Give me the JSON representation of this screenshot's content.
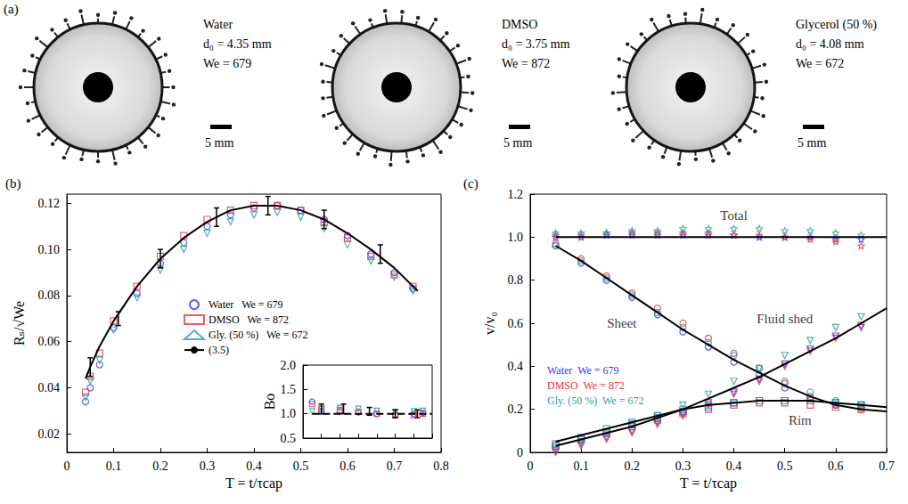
{
  "panel_a": {
    "label": "(a)",
    "photos": [
      {
        "fluid": "Water",
        "d0": "d₀ = 4.35 mm",
        "we": "We = 679",
        "scale": "5 mm"
      },
      {
        "fluid": "DMSO",
        "d0": "d₀ = 3.75 mm",
        "we": "We = 872",
        "scale": "5 mm"
      },
      {
        "fluid": "Glycerol (50 %)",
        "d0": "d₀ = 4.08 mm",
        "we": "We = 672",
        "scale": "5 mm"
      }
    ]
  },
  "chart_data": [
    {
      "type": "scatter",
      "label": "(b)",
      "x_label": "T = t/τcap",
      "y_label": "Rₛ/√We",
      "xlim": [
        0,
        0.8
      ],
      "xticks": [
        0,
        0.1,
        0.2,
        0.3,
        0.4,
        0.5,
        0.6,
        0.7,
        0.8
      ],
      "ylim": [
        0.012,
        0.124
      ],
      "yticks": [
        0.02,
        0.04,
        0.06,
        0.08,
        {
          "value": 0.1,
          "label": "0.10"
        },
        0.12
      ],
      "grid": false,
      "legend": "center",
      "series": [
        {
          "name": "Water",
          "label": "We = 679",
          "color": "#3333ff",
          "marker": "circle",
          "x": [
            0.04,
            0.05,
            0.07,
            0.1,
            0.15,
            0.2,
            0.25,
            0.3,
            0.35,
            0.4,
            0.45,
            0.5,
            0.55,
            0.6,
            0.65,
            0.7,
            0.74
          ],
          "values": [
            0.034,
            0.04,
            0.05,
            0.066,
            0.081,
            0.094,
            0.103,
            0.11,
            0.115,
            0.118,
            0.119,
            0.117,
            0.113,
            0.106,
            0.098,
            0.09,
            0.083
          ]
        },
        {
          "name": "DMSO",
          "label": "We = 872",
          "color": "#e8333a",
          "marker": "square",
          "x": [
            0.04,
            0.05,
            0.07,
            0.1,
            0.15,
            0.2,
            0.25,
            0.3,
            0.35,
            0.4,
            0.45,
            0.5,
            0.55,
            0.6,
            0.65,
            0.7,
            0.74
          ],
          "values": [
            0.038,
            0.045,
            0.055,
            0.069,
            0.084,
            0.097,
            0.106,
            0.113,
            0.117,
            0.119,
            0.119,
            0.117,
            0.112,
            0.105,
            0.097,
            0.089,
            0.084
          ]
        },
        {
          "name": "Gly. (50 %)",
          "label": "We = 672",
          "color": "#2a9d9d",
          "marker": "triangle-down",
          "x": [
            0.04,
            0.05,
            0.07,
            0.1,
            0.15,
            0.2,
            0.25,
            0.3,
            0.35,
            0.4,
            0.45,
            0.5,
            0.55,
            0.6,
            0.65,
            0.7,
            0.74
          ],
          "values": [
            0.036,
            0.043,
            0.052,
            0.065,
            0.079,
            0.091,
            0.1,
            0.107,
            0.112,
            0.115,
            0.116,
            0.114,
            0.109,
            0.102,
            0.095,
            0.088,
            0.082
          ]
        },
        {
          "name": "(3.5)",
          "type": "line",
          "color": "#000000",
          "line_style": "solid",
          "x": [
            0.04,
            0.05,
            0.07,
            0.1,
            0.15,
            0.2,
            0.25,
            0.3,
            0.35,
            0.4,
            0.45,
            0.5,
            0.55,
            0.6,
            0.65,
            0.7,
            0.75
          ],
          "values": [
            0.044,
            0.049,
            0.058,
            0.069,
            0.084,
            0.096,
            0.105,
            0.112,
            0.117,
            0.119,
            0.119,
            0.117,
            0.113,
            0.107,
            0.1,
            0.092,
            0.082
          ],
          "errors": {
            "x": [
              0.05,
              0.11,
              0.2,
              0.32,
              0.43,
              0.55,
              0.67
            ],
            "y": [
              0.049,
              0.07,
              0.096,
              0.114,
              0.119,
              0.113,
              0.098
            ],
            "err": [
              0.004,
              0.003,
              0.004,
              0.004,
              0.004,
              0.004,
              0.004
            ]
          }
        }
      ],
      "inset": {
        "type": "scatter",
        "y_label": "Bo",
        "tick_labels": "y",
        "xlim": [
          0,
          0.7
        ],
        "xticks": [
          0,
          0.1,
          0.2,
          0.3,
          0.4,
          0.5,
          0.6,
          0.7
        ],
        "ylim": [
          0.5,
          2
        ],
        "yticks": [
          0.5,
          {
            "value": 1,
            "label": "1.0"
          },
          1.5,
          {
            "value": 2,
            "label": "2.0"
          }
        ],
        "grid": false,
        "series": [
          {
            "name": "Water",
            "color": "#3333ff",
            "marker": "circle",
            "x": [
              0.05,
              0.1,
              0.2,
              0.3,
              0.4,
              0.5,
              0.6,
              0.65
            ],
            "values": [
              1.25,
              1.05,
              1.05,
              1.03,
              1.0,
              0.98,
              1.0,
              1.02
            ]
          },
          {
            "name": "DMSO",
            "color": "#e8333a",
            "marker": "square",
            "x": [
              0.05,
              0.1,
              0.2,
              0.3,
              0.4,
              0.5,
              0.6,
              0.65
            ],
            "values": [
              1.2,
              1.1,
              1.08,
              1.04,
              1.0,
              0.97,
              0.97,
              1.0
            ]
          },
          {
            "name": "Gly. (50 %)",
            "color": "#2a9d9d",
            "marker": "triangle-down",
            "x": [
              0.05,
              0.1,
              0.2,
              0.3,
              0.4,
              0.5,
              0.6,
              0.65
            ],
            "values": [
              1.05,
              1.1,
              1.12,
              1.1,
              1.06,
              1.04,
              1.05,
              1.06
            ]
          },
          {
            "type": "line",
            "color": "#000000",
            "line_style": "dashed",
            "x": [
              0.05,
              0.7
            ],
            "values": [
              1,
              1
            ],
            "errors": {
              "x": [
                0.1,
                0.22,
                0.36,
                0.5,
                0.62
              ],
              "y": [
                1.1,
                1.1,
                1.05,
                1.0,
                1.0
              ],
              "err": [
                0.1,
                0.1,
                0.08,
                0.08,
                0.08
              ]
            }
          }
        ]
      }
    },
    {
      "type": "scatter",
      "label": "(c)",
      "x_label": "T = t/τcap",
      "y_label": "v/v₀",
      "xlim": [
        0,
        0.7
      ],
      "xticks": [
        0,
        0.1,
        0.2,
        0.3,
        0.4,
        0.5,
        0.6,
        0.7
      ],
      "ylim": [
        0,
        1.2
      ],
      "yticks": [
        0,
        0.2,
        0.4,
        0.6,
        0.8,
        {
          "value": 1,
          "label": "1.0"
        },
        1.2
      ],
      "grid": false,
      "legend": "lower left",
      "annotations": [
        {
          "text": "Total",
          "x": 0.4,
          "y": 1.1
        },
        {
          "text": "Sheet",
          "x": 0.18,
          "y": 0.6
        },
        {
          "text": "Fluid shed",
          "x": 0.5,
          "y": 0.62
        },
        {
          "text": "Rim",
          "x": 0.53,
          "y": 0.15
        }
      ],
      "series": [
        {
          "name": "Water",
          "label": "We = 679",
          "color": "#3333ff",
          "marker": "star",
          "x": [
            0.05,
            0.1,
            0.15,
            0.2,
            0.25,
            0.3,
            0.35,
            0.4,
            0.45,
            0.5,
            0.55,
            0.6,
            0.65
          ],
          "values": [
            1.0,
            1.0,
            1.01,
            1.01,
            1.01,
            1.01,
            1.01,
            1.01,
            1.0,
            1.0,
            1.0,
            0.99,
            0.99
          ]
        },
        {
          "name": "Water",
          "label": "We = 679",
          "color": "#3333ff",
          "marker": "circle",
          "x": [
            0.05,
            0.1,
            0.15,
            0.2,
            0.25,
            0.3,
            0.35,
            0.4,
            0.45,
            0.5,
            0.55,
            0.6,
            0.65
          ],
          "values": [
            0.96,
            0.88,
            0.8,
            0.72,
            0.64,
            0.56,
            0.49,
            0.42,
            0.36,
            0.3,
            0.25,
            0.22,
            0.21
          ]
        },
        {
          "name": "Water",
          "label": "We = 679",
          "color": "#3333ff",
          "marker": "square",
          "x": [
            0.05,
            0.1,
            0.15,
            0.2,
            0.25,
            0.3,
            0.35,
            0.4,
            0.45,
            0.5,
            0.55,
            0.6,
            0.65
          ],
          "values": [
            0.03,
            0.06,
            0.09,
            0.13,
            0.16,
            0.19,
            0.21,
            0.23,
            0.24,
            0.24,
            0.24,
            0.23,
            0.22
          ]
        },
        {
          "name": "Water",
          "label": "We = 679",
          "color": "#3333ff",
          "marker": "triangle-down",
          "x": [
            0.05,
            0.1,
            0.15,
            0.2,
            0.25,
            0.3,
            0.35,
            0.4,
            0.45,
            0.5,
            0.55,
            0.6,
            0.65
          ],
          "values": [
            0.01,
            0.04,
            0.07,
            0.1,
            0.14,
            0.18,
            0.23,
            0.28,
            0.34,
            0.41,
            0.48,
            0.54,
            0.58
          ]
        },
        {
          "name": "DMSO",
          "label": "We = 872",
          "color": "#e8333a",
          "marker": "star",
          "x": [
            0.05,
            0.1,
            0.15,
            0.2,
            0.25,
            0.3,
            0.35,
            0.4,
            0.45,
            0.5,
            0.55,
            0.6,
            0.65
          ],
          "values": [
            1.01,
            1.01,
            1.02,
            1.02,
            1.02,
            1.02,
            1.02,
            1.01,
            1.01,
            1.0,
            0.99,
            0.98,
            0.96
          ]
        },
        {
          "name": "DMSO",
          "label": "We = 872",
          "color": "#e8333a",
          "marker": "circle",
          "x": [
            0.05,
            0.1,
            0.15,
            0.2,
            0.25,
            0.3,
            0.35,
            0.4,
            0.45,
            0.5,
            0.55,
            0.6,
            0.65
          ],
          "values": [
            0.97,
            0.9,
            0.82,
            0.74,
            0.67,
            0.6,
            0.53,
            0.46,
            0.39,
            0.32,
            0.26,
            0.22,
            0.2
          ]
        },
        {
          "name": "DMSO",
          "label": "We = 872",
          "color": "#e8333a",
          "marker": "square",
          "x": [
            0.05,
            0.1,
            0.15,
            0.2,
            0.25,
            0.3,
            0.35,
            0.4,
            0.45,
            0.5,
            0.55,
            0.6,
            0.65
          ],
          "values": [
            0.03,
            0.06,
            0.09,
            0.12,
            0.15,
            0.18,
            0.2,
            0.22,
            0.23,
            0.23,
            0.22,
            0.21,
            0.2
          ]
        },
        {
          "name": "DMSO",
          "label": "We = 872",
          "color": "#e8333a",
          "marker": "triangle-down",
          "x": [
            0.05,
            0.1,
            0.15,
            0.2,
            0.25,
            0.3,
            0.35,
            0.4,
            0.45,
            0.5,
            0.55,
            0.6,
            0.65
          ],
          "values": [
            0.0,
            0.03,
            0.06,
            0.09,
            0.13,
            0.17,
            0.22,
            0.27,
            0.33,
            0.4,
            0.47,
            0.53,
            0.59
          ]
        },
        {
          "name": "Gly. (50 %)",
          "label": "We = 672",
          "color": "#2a9d9d",
          "marker": "star",
          "x": [
            0.05,
            0.1,
            0.15,
            0.2,
            0.25,
            0.3,
            0.35,
            0.4,
            0.45,
            0.5,
            0.55,
            0.6,
            0.65
          ],
          "values": [
            1.02,
            1.02,
            1.02,
            1.03,
            1.03,
            1.04,
            1.04,
            1.04,
            1.04,
            1.03,
            1.03,
            1.02,
            1.01
          ]
        },
        {
          "name": "Gly. (50 %)",
          "label": "We = 672",
          "color": "#2a9d9d",
          "marker": "circle",
          "x": [
            0.05,
            0.1,
            0.15,
            0.2,
            0.25,
            0.3,
            0.35,
            0.4,
            0.45,
            0.5,
            0.55,
            0.6,
            0.65
          ],
          "values": [
            0.96,
            0.89,
            0.81,
            0.73,
            0.65,
            0.58,
            0.51,
            0.45,
            0.39,
            0.33,
            0.28,
            0.24,
            0.22
          ]
        },
        {
          "name": "Gly. (50 %)",
          "label": "We = 672",
          "color": "#2a9d9d",
          "marker": "square",
          "x": [
            0.05,
            0.1,
            0.15,
            0.2,
            0.25,
            0.3,
            0.35,
            0.4,
            0.45,
            0.5,
            0.55,
            0.6,
            0.65
          ],
          "values": [
            0.04,
            0.07,
            0.11,
            0.14,
            0.17,
            0.2,
            0.22,
            0.23,
            0.24,
            0.24,
            0.24,
            0.23,
            0.22
          ]
        },
        {
          "name": "Gly. (50 %)",
          "label": "We = 672",
          "color": "#2a9d9d",
          "marker": "triangle-down",
          "x": [
            0.05,
            0.1,
            0.15,
            0.2,
            0.25,
            0.3,
            0.35,
            0.4,
            0.45,
            0.5,
            0.55,
            0.6,
            0.65
          ],
          "values": [
            0.02,
            0.05,
            0.09,
            0.13,
            0.17,
            0.22,
            0.27,
            0.33,
            0.39,
            0.45,
            0.52,
            0.58,
            0.63
          ]
        },
        {
          "type": "line",
          "color": "#000000",
          "line_style": "solid",
          "x": [
            0.05,
            0.7
          ],
          "values": [
            1,
            1
          ]
        },
        {
          "type": "line",
          "color": "#000000",
          "line_style": "solid",
          "x": [
            0.05,
            0.1,
            0.15,
            0.2,
            0.25,
            0.3,
            0.35,
            0.4,
            0.45,
            0.5,
            0.55,
            0.6,
            0.65,
            0.7
          ],
          "values": [
            0.96,
            0.89,
            0.81,
            0.73,
            0.65,
            0.57,
            0.5,
            0.43,
            0.37,
            0.31,
            0.26,
            0.22,
            0.2,
            0.19
          ]
        },
        {
          "type": "line",
          "color": "#000000",
          "line_style": "solid",
          "x": [
            0.05,
            0.1,
            0.15,
            0.2,
            0.25,
            0.3,
            0.35,
            0.4,
            0.45,
            0.5,
            0.55,
            0.6,
            0.65,
            0.7
          ],
          "values": [
            0.05,
            0.08,
            0.11,
            0.14,
            0.17,
            0.2,
            0.22,
            0.23,
            0.24,
            0.24,
            0.24,
            0.23,
            0.22,
            0.21
          ]
        },
        {
          "type": "line",
          "color": "#000000",
          "line_style": "solid",
          "x": [
            0.05,
            0.1,
            0.15,
            0.2,
            0.25,
            0.3,
            0.35,
            0.4,
            0.45,
            0.5,
            0.55,
            0.6,
            0.65,
            0.7
          ],
          "values": [
            0.03,
            0.06,
            0.09,
            0.12,
            0.16,
            0.2,
            0.25,
            0.3,
            0.35,
            0.41,
            0.47,
            0.53,
            0.6,
            0.67
          ]
        }
      ]
    }
  ]
}
